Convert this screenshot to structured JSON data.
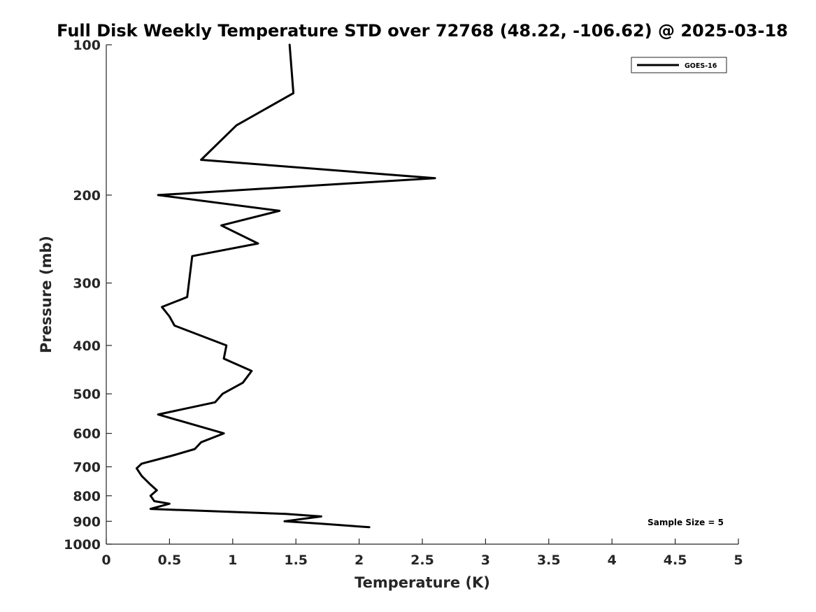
{
  "chart_data": {
    "type": "line",
    "title": "Full Disk Weekly Temperature STD over 72768 (48.22, -106.62) @ 2025-03-18",
    "xlabel": "Temperature (K)",
    "ylabel": "Pressure (mb)",
    "xlim": [
      0,
      5
    ],
    "ylim": [
      100,
      1000
    ],
    "y_scale": "log",
    "y_reversed": true,
    "grid": false,
    "legend_position": "top-right",
    "x_ticks": [
      0,
      0.5,
      1,
      1.5,
      2,
      2.5,
      3,
      3.5,
      4,
      4.5,
      5
    ],
    "x_tick_labels": [
      "0",
      "0.5",
      "1",
      "1.5",
      "2",
      "2.5",
      "3",
      "3.5",
      "4",
      "4.5",
      "5"
    ],
    "y_ticks": [
      100,
      200,
      300,
      400,
      500,
      600,
      700,
      800,
      900,
      1000
    ],
    "y_tick_labels": [
      "100",
      "200",
      "300",
      "400",
      "500",
      "600",
      "700",
      "800",
      "900",
      "1000"
    ],
    "series": [
      {
        "name": "GOES-16",
        "color": "#000000",
        "points": [
          {
            "x": 1.45,
            "y": 100
          },
          {
            "x": 1.48,
            "y": 125
          },
          {
            "x": 1.03,
            "y": 145
          },
          {
            "x": 0.75,
            "y": 170
          },
          {
            "x": 2.6,
            "y": 185
          },
          {
            "x": 0.41,
            "y": 200
          },
          {
            "x": 1.37,
            "y": 215
          },
          {
            "x": 0.91,
            "y": 230
          },
          {
            "x": 1.2,
            "y": 250
          },
          {
            "x": 0.68,
            "y": 265
          },
          {
            "x": 0.64,
            "y": 320
          },
          {
            "x": 0.44,
            "y": 335
          },
          {
            "x": 0.5,
            "y": 350
          },
          {
            "x": 0.54,
            "y": 365
          },
          {
            "x": 0.95,
            "y": 400
          },
          {
            "x": 0.93,
            "y": 425
          },
          {
            "x": 1.15,
            "y": 450
          },
          {
            "x": 1.08,
            "y": 475
          },
          {
            "x": 0.92,
            "y": 500
          },
          {
            "x": 0.86,
            "y": 520
          },
          {
            "x": 0.41,
            "y": 550
          },
          {
            "x": 0.93,
            "y": 600
          },
          {
            "x": 0.75,
            "y": 625
          },
          {
            "x": 0.7,
            "y": 645
          },
          {
            "x": 0.52,
            "y": 665
          },
          {
            "x": 0.28,
            "y": 690
          },
          {
            "x": 0.24,
            "y": 705
          },
          {
            "x": 0.28,
            "y": 730
          },
          {
            "x": 0.35,
            "y": 760
          },
          {
            "x": 0.4,
            "y": 780
          },
          {
            "x": 0.35,
            "y": 800
          },
          {
            "x": 0.38,
            "y": 820
          },
          {
            "x": 0.5,
            "y": 830
          },
          {
            "x": 0.35,
            "y": 850
          },
          {
            "x": 1.42,
            "y": 870
          },
          {
            "x": 1.7,
            "y": 880
          },
          {
            "x": 1.41,
            "y": 900
          },
          {
            "x": 1.7,
            "y": 910
          },
          {
            "x": 2.08,
            "y": 925
          }
        ]
      }
    ],
    "annotations": [
      {
        "text": "Sample Size = 5",
        "position": "bottom-right"
      }
    ]
  }
}
